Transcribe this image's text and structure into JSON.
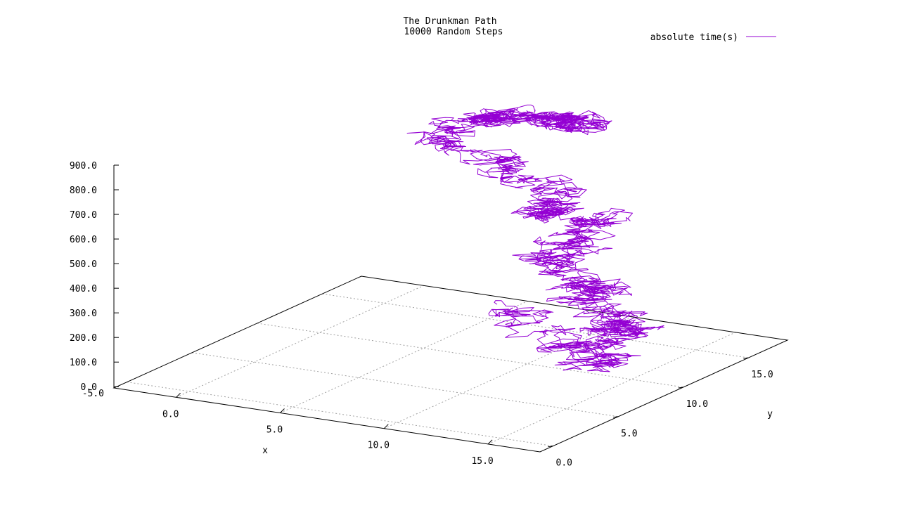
{
  "chart_data": {
    "type": "line",
    "title": [
      "The Drunkman Path",
      "10000 Random Steps"
    ],
    "xlabel": "x",
    "ylabel": "y",
    "zlabel": "",
    "xlim": [
      -3,
      17.5
    ],
    "ylim": [
      -1,
      18
    ],
    "zlim": [
      -5,
      900
    ],
    "x_ticks": [
      0,
      5,
      10,
      15
    ],
    "y_ticks": [
      0,
      5,
      10,
      15
    ],
    "z_ticks": [
      0,
      100,
      200,
      300,
      400,
      500,
      600,
      700,
      800,
      900
    ],
    "x_tick_labels": [
      "0.0",
      "5.0",
      "10.0",
      "15.0"
    ],
    "y_tick_labels": [
      "0.0",
      "5.0",
      "10.0",
      "15.0"
    ],
    "z_tick_labels": [
      "0.0",
      "100.0",
      "200.0",
      "300.0",
      "400.0",
      "500.0",
      "600.0",
      "700.0",
      "800.0",
      "900.0"
    ],
    "z_floor_label": "-5.0",
    "grid": true,
    "legend": {
      "placement": "top-right",
      "entries": [
        "absolute time(s)"
      ]
    },
    "series": [
      {
        "name": "absolute time(s)",
        "color": "#9400d3",
        "steps": 10000,
        "random_seed": 7,
        "anchors": [
          {
            "x": 4.9,
            "y": 16.3,
            "z": 0
          },
          {
            "x": 9.5,
            "y": 13.1,
            "z": 0
          },
          {
            "x": 13.1,
            "y": 10.9,
            "z": 20
          },
          {
            "x": 11.8,
            "y": 13.7,
            "z": 70
          },
          {
            "x": 13.1,
            "y": 11.9,
            "z": 150
          },
          {
            "x": 11.3,
            "y": 13.0,
            "z": 210
          },
          {
            "x": 11.9,
            "y": 11.8,
            "z": 290
          },
          {
            "x": 9.6,
            "y": 13.0,
            "z": 340
          },
          {
            "x": 10.3,
            "y": 12.6,
            "z": 430
          },
          {
            "x": 11.2,
            "y": 13.8,
            "z": 500
          },
          {
            "x": 9.1,
            "y": 12.3,
            "z": 540
          },
          {
            "x": 9.6,
            "y": 13.6,
            "z": 590
          },
          {
            "x": 6.5,
            "y": 13.5,
            "z": 660
          },
          {
            "x": 3.4,
            "y": 14.0,
            "z": 730
          },
          {
            "x": 4.8,
            "y": 15.2,
            "z": 800
          },
          {
            "x": 5.6,
            "y": 15.5,
            "z": 810
          },
          {
            "x": 8.4,
            "y": 14.5,
            "z": 860
          },
          {
            "x": 10.0,
            "y": 13.7,
            "z": 880
          },
          {
            "x": 9.2,
            "y": 14.1,
            "z": 895
          }
        ]
      }
    ]
  }
}
